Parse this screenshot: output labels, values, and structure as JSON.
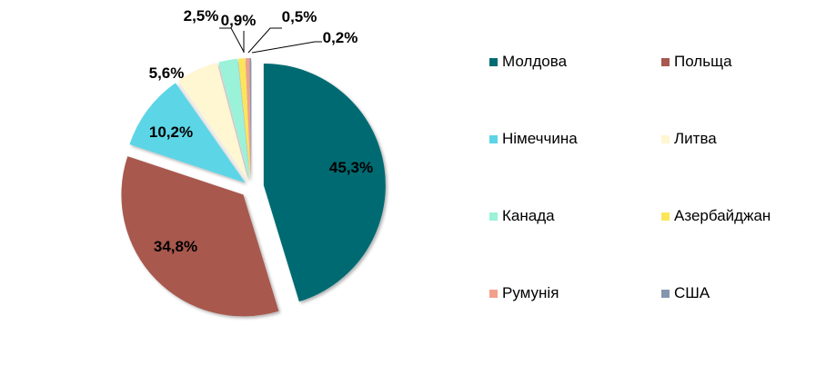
{
  "chart_data": {
    "type": "pie",
    "title": "",
    "categories": [
      "Молдова",
      "Польща",
      "Німеччина",
      "Литва",
      "Канада",
      "Азербайджан",
      "Румунія",
      "США"
    ],
    "values": [
      45.3,
      34.8,
      10.2,
      5.6,
      2.5,
      0.9,
      0.5,
      0.2
    ],
    "labels": [
      "45,3%",
      "34,8%",
      "10,2%",
      "5,6%",
      "2,5%",
      "0,9%",
      "0,5%",
      "0,2%"
    ],
    "colors": [
      "#006b72",
      "#a8584e",
      "#5bd5e6",
      "#fff6d2",
      "#9af2d8",
      "#fbe65a",
      "#f3a08a",
      "#8496ae"
    ],
    "legend_position": "right",
    "unit": "%"
  },
  "legend": {
    "items": [
      {
        "label": "Молдова",
        "color": "#006b72"
      },
      {
        "label": "Польща",
        "color": "#a8584e"
      },
      {
        "label": "Німеччина",
        "color": "#5bd5e6"
      },
      {
        "label": "Литва",
        "color": "#fff6d2"
      },
      {
        "label": "Канада",
        "color": "#9af2d8"
      },
      {
        "label": "Азербайджан",
        "color": "#fbe65a"
      },
      {
        "label": "Румунія",
        "color": "#f3a08a"
      },
      {
        "label": "США",
        "color": "#8496ae"
      }
    ]
  }
}
